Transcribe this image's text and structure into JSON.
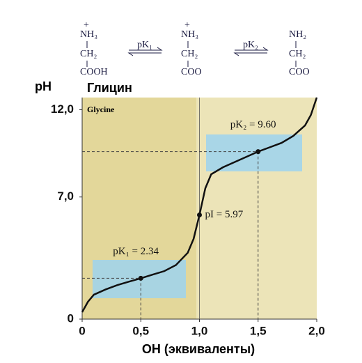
{
  "header": {
    "structures": [
      {
        "charge": "+",
        "top": "NH₃",
        "middle": "CH₂",
        "bottom": "COOH"
      },
      {
        "charge": "+",
        "top": "NH₃",
        "middle": "CH₂",
        "bottom": "COO"
      },
      {
        "top": "NH₂",
        "middle": "CH₂",
        "bottom": "COO"
      }
    ],
    "arrows": [
      "pK₁",
      "pK₂"
    ]
  },
  "chart_data": {
    "type": "line",
    "title": "Глицин",
    "subtitle": "Glycine",
    "x_label": "OH (эквиваленты)",
    "y_label": "pH",
    "x": [
      0,
      0.05,
      0.1,
      0.2,
      0.3,
      0.4,
      0.5,
      0.6,
      0.7,
      0.8,
      0.9,
      0.95,
      1.0,
      1.05,
      1.1,
      1.2,
      1.3,
      1.4,
      1.5,
      1.6,
      1.7,
      1.8,
      1.9,
      1.95,
      2.0
    ],
    "series": [
      {
        "color": "#111111",
        "values": [
          0.4,
          1.0,
          1.4,
          1.7,
          1.95,
          2.15,
          2.34,
          2.55,
          2.75,
          3.1,
          3.8,
          4.6,
          5.97,
          7.5,
          8.3,
          8.7,
          9.0,
          9.3,
          9.6,
          9.85,
          10.1,
          10.5,
          11.1,
          11.7,
          12.7
        ]
      }
    ],
    "points": [
      {
        "x": 0.5,
        "y": 2.34,
        "label": "pK₁ = 2.34"
      },
      {
        "x": 1.0,
        "y": 5.97,
        "label": "pI = 5.97"
      },
      {
        "x": 1.5,
        "y": 9.6,
        "label": "pK₂ = 9.60"
      }
    ],
    "xlim": [
      0,
      2
    ],
    "ylim": [
      0,
      12.7
    ],
    "xticks": [
      0,
      {
        "value": 0.5,
        "label": "0,5"
      },
      {
        "value": 1,
        "label": "1,0"
      },
      {
        "value": 1.5,
        "label": "1,5"
      },
      {
        "value": 2,
        "label": "2,0"
      }
    ],
    "yticks": [
      0,
      {
        "value": 7,
        "label": "7,0"
      },
      {
        "value": 12,
        "label": "12,0"
      }
    ]
  }
}
